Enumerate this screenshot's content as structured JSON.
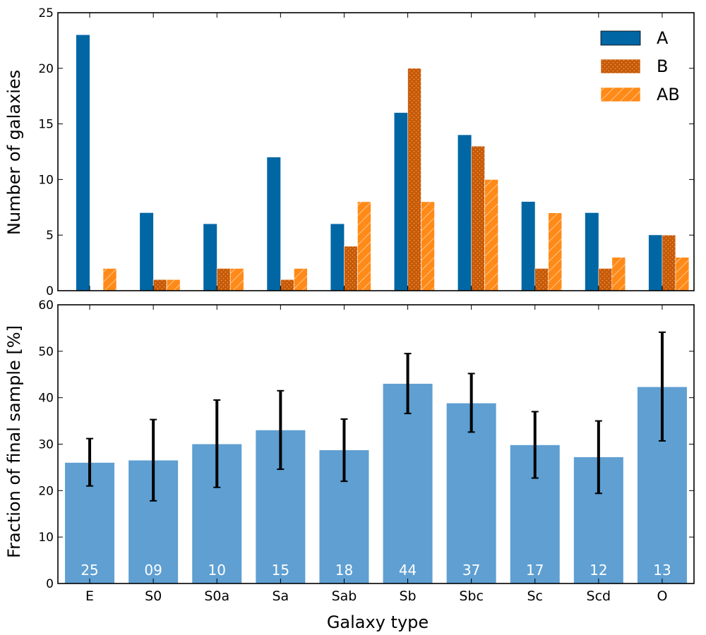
{
  "chart_data": [
    {
      "type": "bar",
      "categories": [
        "E",
        "S0",
        "S0a",
        "Sa",
        "Sab",
        "Sb",
        "Sbc",
        "Sc",
        "Scd",
        "O"
      ],
      "series": [
        {
          "name": "A",
          "values": [
            23,
            7,
            6,
            12,
            6,
            16,
            14,
            8,
            7,
            5
          ],
          "color": "#0066a4",
          "pattern": "solid"
        },
        {
          "name": "B",
          "values": [
            0,
            1,
            2,
            1,
            4,
            20,
            13,
            2,
            2,
            5
          ],
          "color": "#c85a05",
          "pattern": "dots"
        },
        {
          "name": "AB",
          "values": [
            2,
            1,
            2,
            2,
            8,
            8,
            10,
            7,
            3,
            3
          ],
          "color": "#ff8a18",
          "pattern": "hatch"
        }
      ],
      "ylabel": "Number of galaxies",
      "ylim": [
        0,
        25
      ],
      "yticks": [
        0,
        5,
        10,
        15,
        20,
        25
      ],
      "legend": "top-right",
      "grid": false
    },
    {
      "type": "bar",
      "categories": [
        "E",
        "S0",
        "S0a",
        "Sa",
        "Sab",
        "Sb",
        "Sbc",
        "Sc",
        "Scd",
        "O"
      ],
      "values": [
        26,
        26.5,
        30,
        33,
        28.7,
        43,
        38.8,
        29.8,
        27.2,
        42.3
      ],
      "error_low": [
        21,
        17.8,
        20.7,
        24.6,
        22,
        36.6,
        32.6,
        22.7,
        19.4,
        30.7
      ],
      "error_high": [
        31.2,
        35.3,
        39.5,
        41.5,
        35.4,
        49.5,
        45.2,
        37,
        35,
        54.1
      ],
      "bar_labels": [
        "25",
        "09",
        "10",
        "15",
        "18",
        "44",
        "37",
        "17",
        "12",
        "13"
      ],
      "color": "#5f9fd2",
      "error_color": "#000000",
      "xlabel": "Galaxy type",
      "ylabel": "Fraction of final sample [%]",
      "ylim": [
        0,
        60
      ],
      "yticks": [
        0,
        10,
        20,
        30,
        40,
        50,
        60
      ],
      "grid": false
    }
  ]
}
